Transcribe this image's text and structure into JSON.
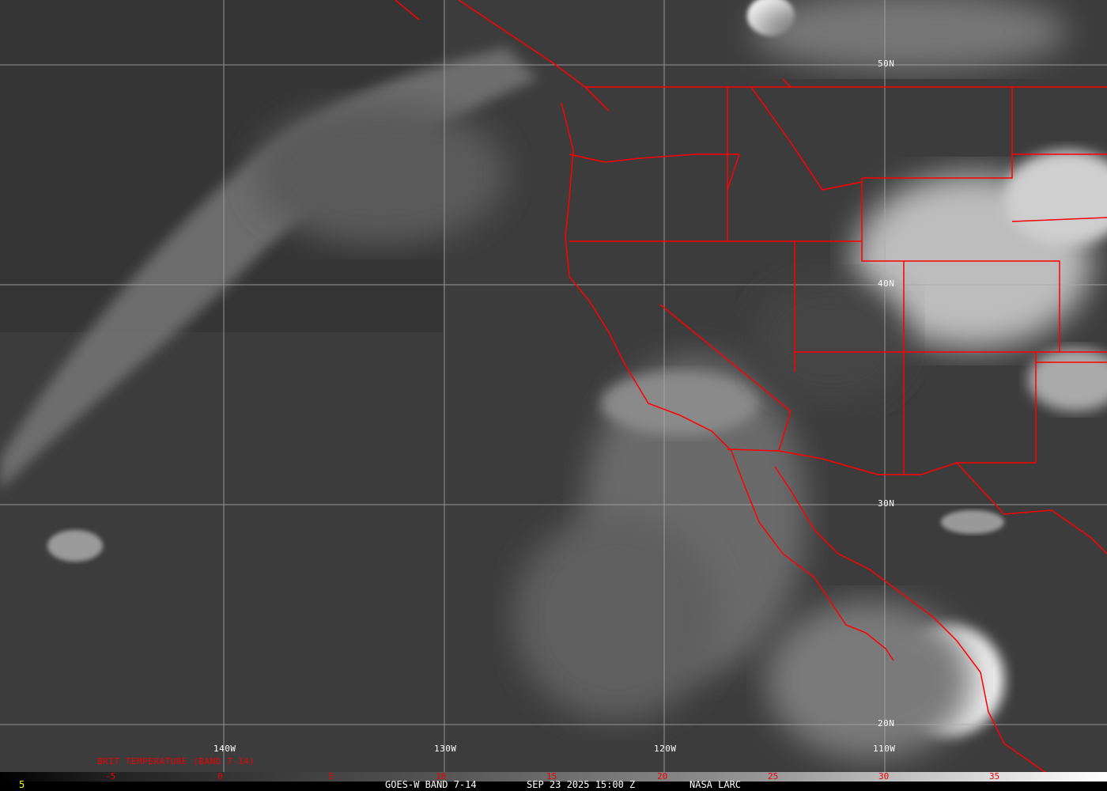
{
  "image": {
    "product": "GOES-W BAND 7-14",
    "datetime": "SEP 23 2025 15:00 Z",
    "credit": "NASA LARC",
    "corner_value": "5"
  },
  "grid": {
    "longitudes": [
      "140W",
      "130W",
      "120W",
      "110W"
    ],
    "latitudes": [
      "50N",
      "40N",
      "30N",
      "20N"
    ]
  },
  "colorbar": {
    "title": "BRIT TEMPERATURE (BAND 7-14)",
    "ticks": [
      "-5",
      "0",
      "5",
      "10",
      "15",
      "20",
      "25",
      "30",
      "35"
    ]
  },
  "colors": {
    "borders": "#ff0000",
    "grid": "#aaaaaa",
    "colorbar_labels": "#ee0000",
    "corner_value": "#ffff00"
  }
}
